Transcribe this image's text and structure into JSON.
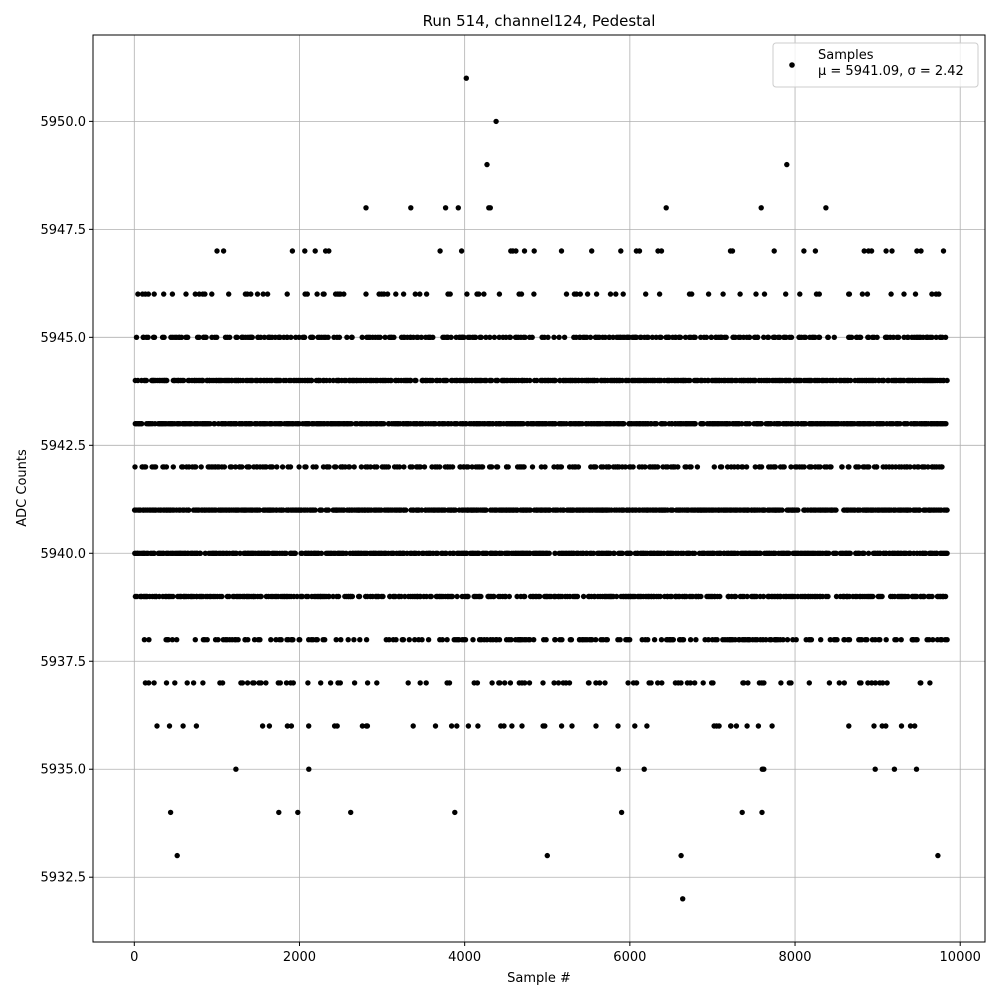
{
  "chart_data": {
    "type": "scatter",
    "title": "Run 514, channel124, Pedestal",
    "xlabel": "Sample #",
    "ylabel": "ADC Counts",
    "xlim": [
      -500,
      10300
    ],
    "ylim": [
      5931,
      5952
    ],
    "x_ticks": [
      0,
      2000,
      4000,
      6000,
      8000,
      10000
    ],
    "x_tick_labels": [
      "0",
      "2000",
      "4000",
      "6000",
      "8000",
      "10000"
    ],
    "y_ticks": [
      5932.5,
      5935.0,
      5937.5,
      5940.0,
      5942.5,
      5945.0,
      5947.5,
      5950.0
    ],
    "y_tick_labels": [
      "5932.5",
      "5935.0",
      "5937.5",
      "5940.0",
      "5942.5",
      "5945.0",
      "5947.5",
      "5950.0"
    ],
    "grid": true,
    "legend": {
      "position": "upper-right",
      "entries": [
        {
          "label": "Samples",
          "sublabel": "μ = 5941.09, σ = 2.42"
        }
      ]
    },
    "marker_color": "#000000",
    "series": [
      {
        "name": "Samples",
        "x_range": [
          0,
          9830
        ],
        "n_points": 9831,
        "levels": [
          {
            "y": 5932,
            "density": 0
          },
          {
            "y": 5933,
            "density": 0
          },
          {
            "y": 5934,
            "density": 0
          },
          {
            "y": 5935,
            "density": 0.022
          },
          {
            "y": 5936,
            "density": 0.065
          },
          {
            "y": 5937,
            "density": 0.15
          },
          {
            "y": 5938,
            "density": 0.3
          },
          {
            "y": 5939,
            "density": 0.62
          },
          {
            "y": 5940,
            "density": 0.72
          },
          {
            "y": 5941,
            "density": 0.74
          },
          {
            "y": 5942,
            "density": 0.4
          },
          {
            "y": 5943,
            "density": 0.78
          },
          {
            "y": 5944,
            "density": 0.7
          },
          {
            "y": 5945,
            "density": 0.38
          },
          {
            "y": 5946,
            "density": 0.14
          },
          {
            "y": 5947,
            "density": 0.035
          },
          {
            "y": 5948,
            "density": 0.012
          }
        ],
        "explicit_points": [
          [
            520,
            5933
          ],
          [
            5000,
            5933
          ],
          [
            6620,
            5933
          ],
          [
            9730,
            5933
          ],
          [
            6640,
            5932
          ],
          [
            440,
            5934
          ],
          [
            1750,
            5934
          ],
          [
            1980,
            5934
          ],
          [
            2620,
            5934
          ],
          [
            3880,
            5934
          ],
          [
            5900,
            5934
          ],
          [
            7360,
            5934
          ],
          [
            7600,
            5934
          ],
          [
            4020,
            5951
          ],
          [
            4380,
            5950
          ],
          [
            4270,
            5949
          ],
          [
            7900,
            5949
          ]
        ]
      }
    ]
  }
}
